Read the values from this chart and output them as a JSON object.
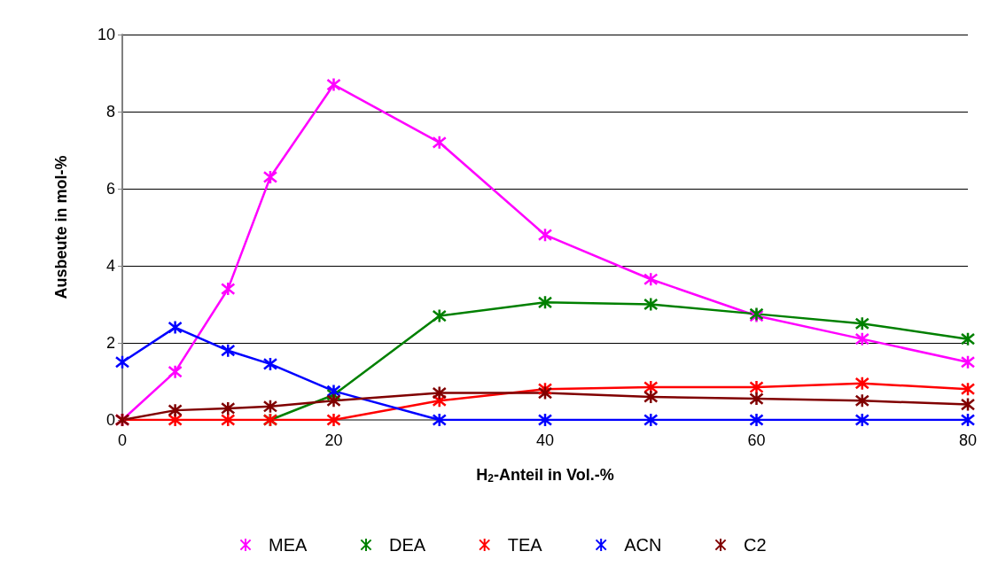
{
  "chart_data": {
    "type": "line",
    "xlabel": "H$_{2}$-Anteil in Vol.-%",
    "ylabel": "Ausbeute in mol-%",
    "x": [
      0,
      5,
      10,
      14,
      20,
      30,
      40,
      50,
      60,
      70,
      80
    ],
    "xlim": [
      0,
      80
    ],
    "xticks": [
      0,
      20,
      40,
      60,
      80
    ],
    "ylim": [
      0,
      10
    ],
    "yticks": [
      0,
      2,
      4,
      6,
      8,
      10
    ],
    "grid": "y",
    "legend": "bottom",
    "marker": "cross",
    "line_style": "solid",
    "series": [
      {
        "name": "MEA",
        "color": "#ff00ff",
        "values": [
          0,
          1.25,
          3.4,
          6.3,
          8.7,
          7.2,
          4.8,
          3.65,
          2.7,
          2.1,
          1.5
        ]
      },
      {
        "name": "DEA",
        "color": "#008000",
        "values": [
          null,
          null,
          null,
          0,
          0.65,
          2.7,
          3.05,
          3.0,
          2.75,
          2.5,
          2.1
        ]
      },
      {
        "name": "TEA",
        "color": "#ff0000",
        "values": [
          0,
          0,
          0,
          0,
          0,
          0.5,
          0.8,
          0.85,
          0.85,
          0.95,
          0.8
        ]
      },
      {
        "name": "ACN",
        "color": "#0000ff",
        "values": [
          1.5,
          2.4,
          1.8,
          1.45,
          0.75,
          0,
          0,
          0,
          0,
          0,
          0
        ]
      },
      {
        "name": "C2",
        "color": "#800000",
        "values": [
          0,
          0.25,
          0.3,
          0.35,
          0.5,
          0.7,
          0.7,
          0.6,
          0.55,
          0.5,
          0.4
        ]
      }
    ]
  }
}
